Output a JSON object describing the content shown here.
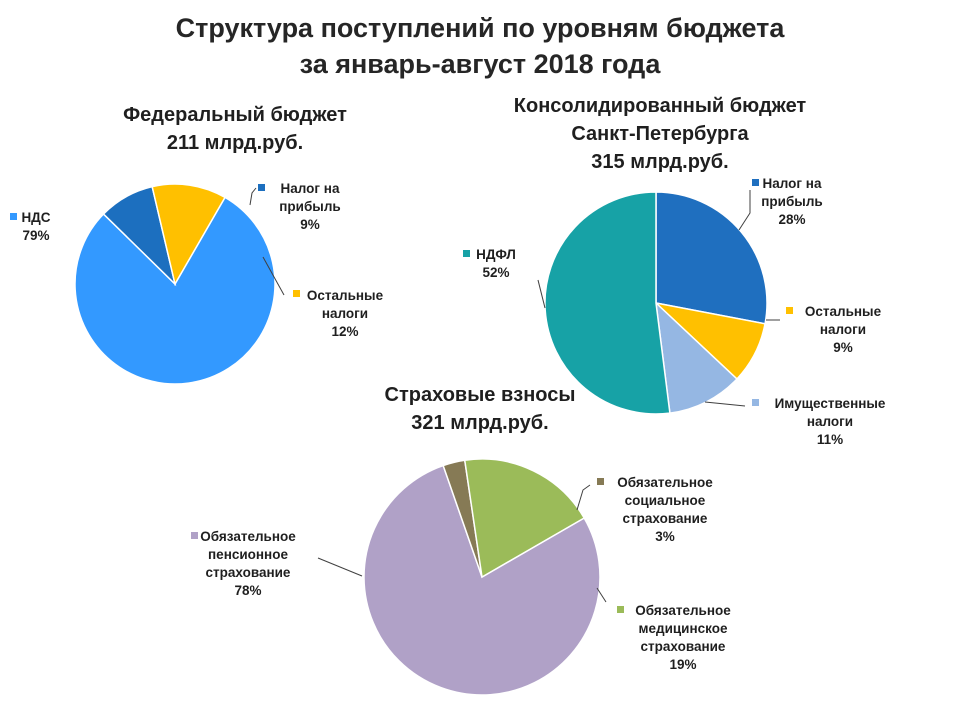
{
  "title_line1": "Структура поступлений по уровням бюджета",
  "title_line2": "за январь-август 2018 года",
  "chart_data": [
    {
      "type": "pie",
      "title": "Федеральный бюджет",
      "subtitle": "211 млрд.руб.",
      "slices": [
        {
          "name": "НДС",
          "value": 79,
          "label": "79%",
          "color": "#3399ff"
        },
        {
          "name": "Налог на прибыль",
          "value": 9,
          "label": "9%",
          "color": "#1c6fbf"
        },
        {
          "name": "Остальные налоги",
          "value": 12,
          "label": "12%",
          "color": "#ffc000"
        }
      ]
    },
    {
      "type": "pie",
      "title": "Консолидированный бюджет",
      "title_line2": "Санкт-Петербурга",
      "subtitle": "315 млрд.руб.",
      "slices": [
        {
          "name": "Налог на прибыль",
          "value": 28,
          "label": "28%",
          "color": "#1f6fbf"
        },
        {
          "name": "Остальные налоги",
          "value": 9,
          "label": "9%",
          "color": "#ffc000"
        },
        {
          "name": "Имущественные налоги",
          "value": 11,
          "label": "11%",
          "color": "#95b7e3"
        },
        {
          "name": "НДФЛ",
          "value": 52,
          "label": "52%",
          "color": "#17a2a6"
        }
      ]
    },
    {
      "type": "pie",
      "title": "Страховые взносы",
      "subtitle": "321 млрд.руб.",
      "slices": [
        {
          "name": "Обязательное пенсионное страхование",
          "value": 78,
          "label": "78%",
          "color": "#b0a1c7"
        },
        {
          "name": "Обязательное социальное страхование",
          "value": 3,
          "label": "3%",
          "color": "#867a55"
        },
        {
          "name": "Обязательное медицинское страхование",
          "value": 19,
          "label": "19%",
          "color": "#9bbb59"
        }
      ]
    }
  ]
}
